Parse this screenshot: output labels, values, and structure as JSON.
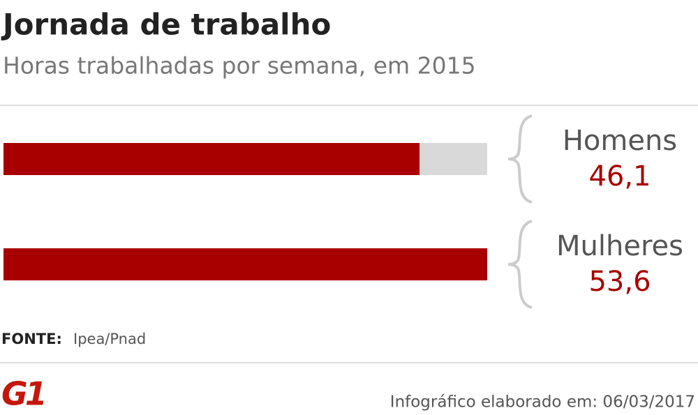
{
  "chart_data": {
    "type": "bar",
    "orientation": "horizontal",
    "title": "Jornada de trabalho",
    "subtitle": "Horas trabalhadas por semana, em 2015",
    "categories": [
      "Homens",
      "Mulheres"
    ],
    "values": [
      46.1,
      53.6
    ],
    "value_labels": [
      "46,1",
      "53,6"
    ],
    "color": "#a80000",
    "track_color": "#d9d9d9",
    "source_label": "FONTE:",
    "source": "Ipea/Pnad",
    "logo": "G1",
    "footer": "Infográfico elaborado em: 06/03/2017"
  }
}
